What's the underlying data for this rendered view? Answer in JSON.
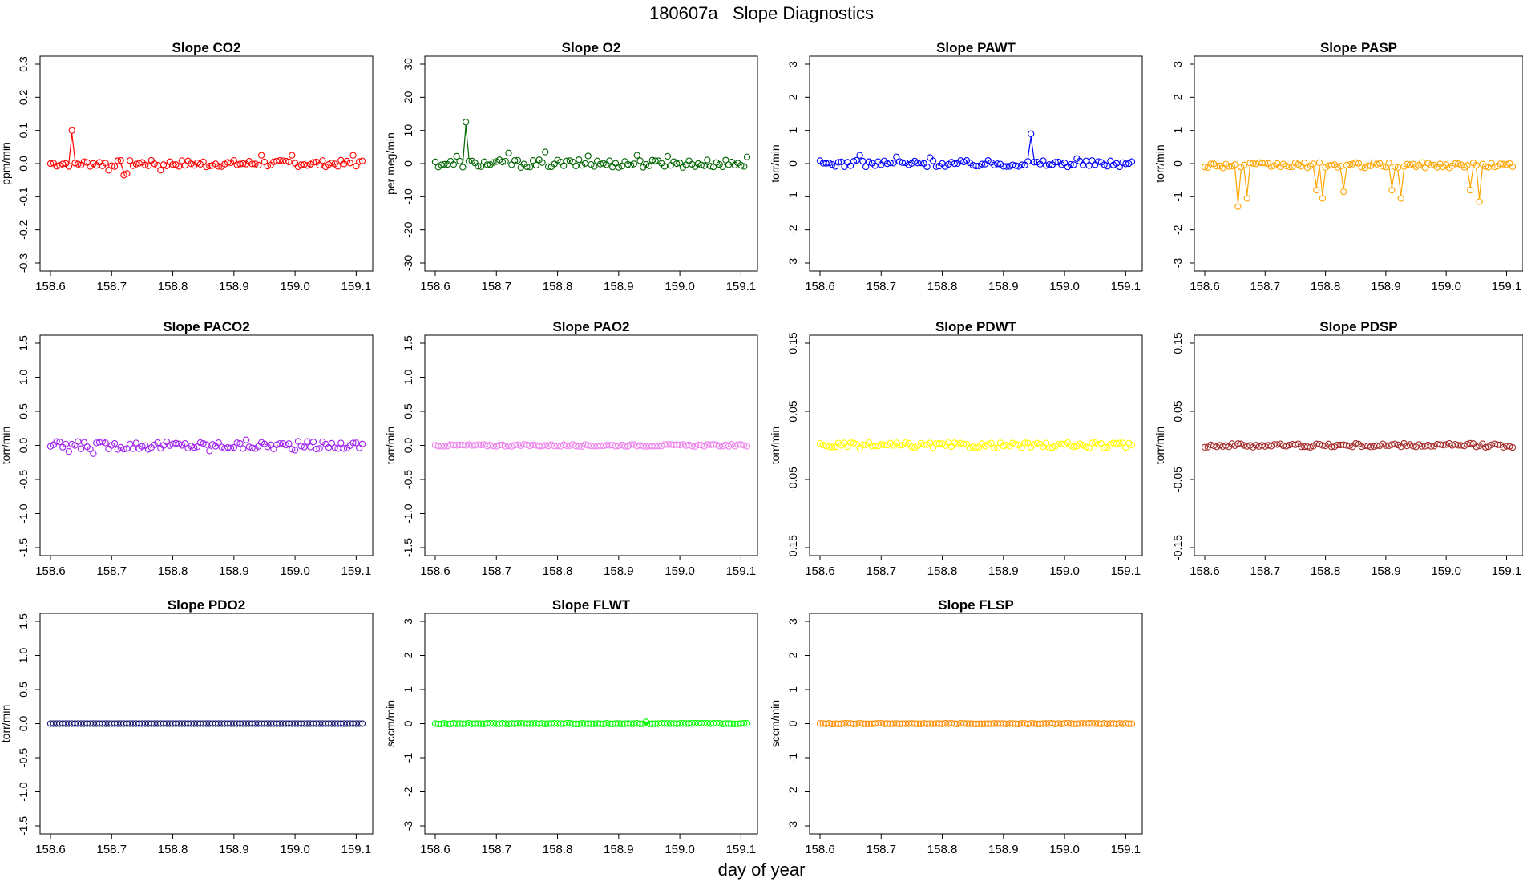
{
  "figure": {
    "title": "180607a   Slope Diagnostics",
    "xlabel": "day of year"
  },
  "chart_data": [
    {
      "type": "scatter",
      "title": "Slope CO2",
      "ylabel": "ppm/min",
      "color": "#ff0000",
      "xlim": [
        158.6,
        159.11
      ],
      "ylim": [
        -0.3,
        0.3
      ],
      "xticks": [
        "158.6",
        "158.7",
        "158.8",
        "158.9",
        "159.0",
        "159.1"
      ],
      "yticks": [
        "-0.3",
        "-0.2",
        "-0.1",
        "0.0",
        "0.1",
        "0.2",
        "0.3"
      ],
      "x_start": 158.6,
      "x_step": 0.005,
      "count": 103,
      "base": 0,
      "jitter": 0.01,
      "spikes": [
        [
          158.635,
          0.1
        ],
        [
          158.697,
          -0.02
        ],
        [
          158.72,
          -0.035
        ],
        [
          158.725,
          -0.03
        ],
        [
          158.78,
          -0.02
        ],
        [
          158.855,
          -0.01
        ],
        [
          158.945,
          0.025
        ],
        [
          158.995,
          0.025
        ],
        [
          159.095,
          0.025
        ]
      ]
    },
    {
      "type": "scatter",
      "title": "Slope O2",
      "ylabel": "per meg/min",
      "color": "#006400",
      "xlim": [
        158.6,
        159.11
      ],
      "ylim": [
        -30,
        30
      ],
      "xticks": [
        "158.6",
        "158.7",
        "158.8",
        "158.9",
        "159.0",
        "159.1"
      ],
      "yticks": [
        "-30",
        "-20",
        "-10",
        "0",
        "10",
        "20",
        "30"
      ],
      "x_start": 158.6,
      "x_step": 0.005,
      "count": 103,
      "base": 0,
      "jitter": 1.2,
      "spikes": [
        [
          158.65,
          12.5
        ],
        [
          158.635,
          2.2
        ],
        [
          158.72,
          3.2
        ],
        [
          158.78,
          3.5
        ],
        [
          158.85,
          2.3
        ],
        [
          158.93,
          2.5
        ],
        [
          158.98,
          2.2
        ],
        [
          159.11,
          2.0
        ]
      ]
    },
    {
      "type": "scatter",
      "title": "Slope PAWT",
      "ylabel": "torr/min",
      "color": "#0000ff",
      "xlim": [
        158.6,
        159.11
      ],
      "ylim": [
        -3,
        3
      ],
      "xticks": [
        "158.6",
        "158.7",
        "158.8",
        "158.9",
        "159.0",
        "159.1"
      ],
      "yticks": [
        "-3",
        "-2",
        "-1",
        "0",
        "1",
        "2",
        "3"
      ],
      "x_start": 158.6,
      "x_step": 0.005,
      "count": 103,
      "base": 0,
      "jitter": 0.1,
      "spikes": [
        [
          158.945,
          0.9
        ],
        [
          158.665,
          0.25
        ],
        [
          158.725,
          0.2
        ],
        [
          158.78,
          0.18
        ],
        [
          159.02,
          0.15
        ]
      ]
    },
    {
      "type": "scatter",
      "title": "Slope PASP",
      "ylabel": "torr/min",
      "color": "#ffa500",
      "xlim": [
        158.6,
        159.11
      ],
      "ylim": [
        -3,
        3
      ],
      "xticks": [
        "158.6",
        "158.7",
        "158.8",
        "158.9",
        "159.0",
        "159.1"
      ],
      "yticks": [
        "-3",
        "-2",
        "-1",
        "0",
        "1",
        "2",
        "3"
      ],
      "x_start": 158.6,
      "x_step": 0.005,
      "count": 103,
      "base": -0.05,
      "jitter": 0.08,
      "spikes": [
        [
          158.655,
          -1.3
        ],
        [
          158.67,
          -1.05
        ],
        [
          158.785,
          -0.8
        ],
        [
          158.795,
          -1.05
        ],
        [
          158.83,
          -0.85
        ],
        [
          158.91,
          -0.8
        ],
        [
          158.925,
          -1.05
        ],
        [
          159.04,
          -0.8
        ],
        [
          159.055,
          -1.15
        ]
      ]
    },
    {
      "type": "scatter",
      "title": "Slope PACO2",
      "ylabel": "torr/min",
      "color": "#a020f0",
      "xlim": [
        158.6,
        159.11
      ],
      "ylim": [
        -1.5,
        1.5
      ],
      "xticks": [
        "158.6",
        "158.7",
        "158.8",
        "158.9",
        "159.0",
        "159.1"
      ],
      "yticks": [
        "-1.5",
        "-1.0",
        "-0.5",
        "0.0",
        "0.5",
        "1.0",
        "1.5"
      ],
      "x_start": 158.6,
      "x_step": 0.005,
      "count": 103,
      "base": 0,
      "jitter": 0.06,
      "spikes": [
        [
          158.67,
          -0.12
        ],
        [
          158.63,
          -0.09
        ],
        [
          158.86,
          -0.08
        ],
        [
          158.92,
          0.08
        ],
        [
          159.0,
          -0.07
        ]
      ]
    },
    {
      "type": "scatter",
      "title": "Slope PAO2",
      "ylabel": "torr/min",
      "color": "#ee82ee",
      "xlim": [
        158.6,
        159.11
      ],
      "ylim": [
        -1.5,
        1.5
      ],
      "xticks": [
        "158.6",
        "158.7",
        "158.8",
        "158.9",
        "159.0",
        "159.1"
      ],
      "yticks": [
        "-1.5",
        "-1.0",
        "-0.5",
        "0.0",
        "0.5",
        "1.0",
        "1.5"
      ],
      "x_start": 158.6,
      "x_step": 0.005,
      "count": 103,
      "base": 0,
      "jitter": 0.015,
      "spikes": []
    },
    {
      "type": "scatter",
      "title": "Slope PDWT",
      "ylabel": "torr/min",
      "color": "#ffff00",
      "xlim": [
        158.6,
        159.11
      ],
      "ylim": [
        -0.15,
        0.15
      ],
      "xticks": [
        "158.6",
        "158.7",
        "158.8",
        "158.9",
        "159.0",
        "159.1"
      ],
      "yticks": [
        "-0.15",
        "-0.05",
        "0.05",
        "0.15"
      ],
      "x_start": 158.6,
      "x_step": 0.005,
      "count": 103,
      "base": 0,
      "jitter": 0.004,
      "spikes": []
    },
    {
      "type": "scatter",
      "title": "Slope PDSP",
      "ylabel": "torr/min",
      "color": "#a52a2a",
      "xlim": [
        158.6,
        159.11
      ],
      "ylim": [
        -0.15,
        0.15
      ],
      "xticks": [
        "158.6",
        "158.7",
        "158.8",
        "158.9",
        "159.0",
        "159.1"
      ],
      "yticks": [
        "-0.15",
        "-0.05",
        "0.05",
        "0.15"
      ],
      "x_start": 158.6,
      "x_step": 0.005,
      "count": 103,
      "base": 0,
      "jitter": 0.003,
      "spikes": []
    },
    {
      "type": "scatter",
      "title": "Slope PDO2",
      "ylabel": "torr/min",
      "color": "#191970",
      "xlim": [
        158.6,
        159.11
      ],
      "ylim": [
        -1.5,
        1.5
      ],
      "xticks": [
        "158.6",
        "158.7",
        "158.8",
        "158.9",
        "159.0",
        "159.1"
      ],
      "yticks": [
        "-1.5",
        "-1.0",
        "-0.5",
        "0.0",
        "0.5",
        "1.0",
        "1.5"
      ],
      "x_start": 158.6,
      "x_step": 0.005,
      "count": 103,
      "base": 0,
      "jitter": 0,
      "spikes": []
    },
    {
      "type": "scatter",
      "title": "Slope FLWT",
      "ylabel": "sccm/min",
      "color": "#00ff00",
      "xlim": [
        158.6,
        159.11
      ],
      "ylim": [
        -3,
        3
      ],
      "xticks": [
        "158.6",
        "158.7",
        "158.8",
        "158.9",
        "159.0",
        "159.1"
      ],
      "yticks": [
        "-3",
        "-2",
        "-1",
        "0",
        "1",
        "2",
        "3"
      ],
      "x_start": 158.6,
      "x_step": 0.005,
      "count": 103,
      "base": 0,
      "jitter": 0.01,
      "spikes": [
        [
          158.945,
          0.05
        ]
      ]
    },
    {
      "type": "scatter",
      "title": "Slope FLSP",
      "ylabel": "sccm/min",
      "color": "#ff8c00",
      "xlim": [
        158.6,
        159.11
      ],
      "ylim": [
        -3,
        3
      ],
      "xticks": [
        "158.6",
        "158.7",
        "158.8",
        "158.9",
        "159.0",
        "159.1"
      ],
      "yticks": [
        "-3",
        "-2",
        "-1",
        "0",
        "1",
        "2",
        "3"
      ],
      "x_start": 158.6,
      "x_step": 0.005,
      "count": 103,
      "base": 0,
      "jitter": 0.01,
      "spikes": []
    }
  ]
}
